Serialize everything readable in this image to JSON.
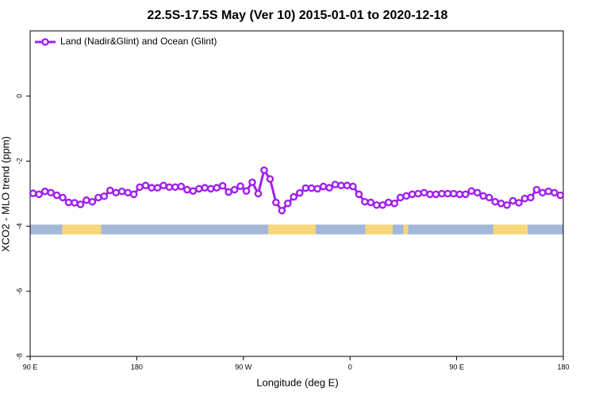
{
  "chart_data": {
    "type": "line",
    "title": "22.5S-17.5S May (Ver 10)   2015-01-01 to 2020-12-18",
    "xlabel": "Longitude (deg E)",
    "ylabel": "XCO2 - MLO trend (ppm)",
    "xlim": [
      90,
      540
    ],
    "ylim": [
      -8,
      2
    ],
    "xticks": [
      {
        "value": 90,
        "label": "90 E"
      },
      180,
      {
        "value": 270,
        "label": "90 W"
      },
      {
        "value": 360,
        "label": "0"
      },
      {
        "value": 450,
        "label": "90 E"
      },
      {
        "value": 540,
        "label": "180"
      }
    ],
    "yticks": [
      -8,
      -6,
      -4,
      -2,
      0
    ],
    "legend": "top-left",
    "surface": {
      "ylim": [
        -4.25,
        -3.95
      ],
      "ocean_color": "#a3b8d8",
      "land_color": "#f7d77c",
      "land": [
        [
          117,
          150
        ],
        [
          291,
          331
        ],
        [
          373,
          396
        ],
        [
          405,
          409
        ],
        [
          481,
          510
        ]
      ]
    },
    "x": [
      92.5,
      97.5,
      102.5,
      107.5,
      112.5,
      117.5,
      122.5,
      127.5,
      132.5,
      137.5,
      142.5,
      147.5,
      152.5,
      157.5,
      162.5,
      167.5,
      172.5,
      177.5,
      182.5,
      187.5,
      192.5,
      197.5,
      202.5,
      207.5,
      212.5,
      217.5,
      222.5,
      227.5,
      232.5,
      237.5,
      242.5,
      247.5,
      252.5,
      257.5,
      262.5,
      267.5,
      272.5,
      277.5,
      282.5,
      287.5,
      292.5,
      297.5,
      302.5,
      307.5,
      312.5,
      317.5,
      322.5,
      327.5,
      332.5,
      337.5,
      342.5,
      347.5,
      352.5,
      357.5,
      362.5,
      367.5,
      372.5,
      377.5,
      382.5,
      387.5,
      392.5,
      397.5,
      402.5,
      407.5,
      412.5,
      417.5,
      422.5,
      427.5,
      432.5,
      437.5,
      442.5,
      447.5,
      452.5,
      457.5,
      462.5,
      467.5,
      472.5,
      477.5,
      482.5,
      487.5,
      492.5,
      497.5,
      502.5,
      507.5,
      512.5,
      517.5,
      522.5,
      527.5,
      532.5,
      537.5
    ],
    "series": [
      {
        "name": "Land (Nadir&Glint) and Ocean (Glint)",
        "color": "#a020f0",
        "values": [
          -2.99,
          -3.02,
          -2.93,
          -2.97,
          -3.05,
          -3.12,
          -3.27,
          -3.28,
          -3.33,
          -3.2,
          -3.25,
          -3.12,
          -3.08,
          -2.9,
          -2.97,
          -2.93,
          -2.97,
          -3.02,
          -2.8,
          -2.75,
          -2.82,
          -2.82,
          -2.75,
          -2.8,
          -2.8,
          -2.78,
          -2.88,
          -2.92,
          -2.85,
          -2.82,
          -2.85,
          -2.82,
          -2.76,
          -2.95,
          -2.88,
          -2.77,
          -2.92,
          -2.65,
          -3.0,
          -2.28,
          -2.55,
          -3.27,
          -3.52,
          -3.3,
          -3.1,
          -2.98,
          -2.83,
          -2.83,
          -2.85,
          -2.78,
          -2.82,
          -2.72,
          -2.75,
          -2.75,
          -2.78,
          -3.02,
          -3.25,
          -3.27,
          -3.35,
          -3.35,
          -3.27,
          -3.3,
          -3.12,
          -3.07,
          -3.02,
          -3.0,
          -2.97,
          -3.02,
          -3.02,
          -3.0,
          -3.0,
          -3.0,
          -3.02,
          -3.02,
          -2.92,
          -2.97,
          -3.07,
          -3.12,
          -3.25,
          -3.3,
          -3.35,
          -3.22,
          -3.28,
          -3.15,
          -3.12,
          -2.88,
          -2.97,
          -2.93,
          -2.97,
          -3.05
        ]
      }
    ]
  }
}
